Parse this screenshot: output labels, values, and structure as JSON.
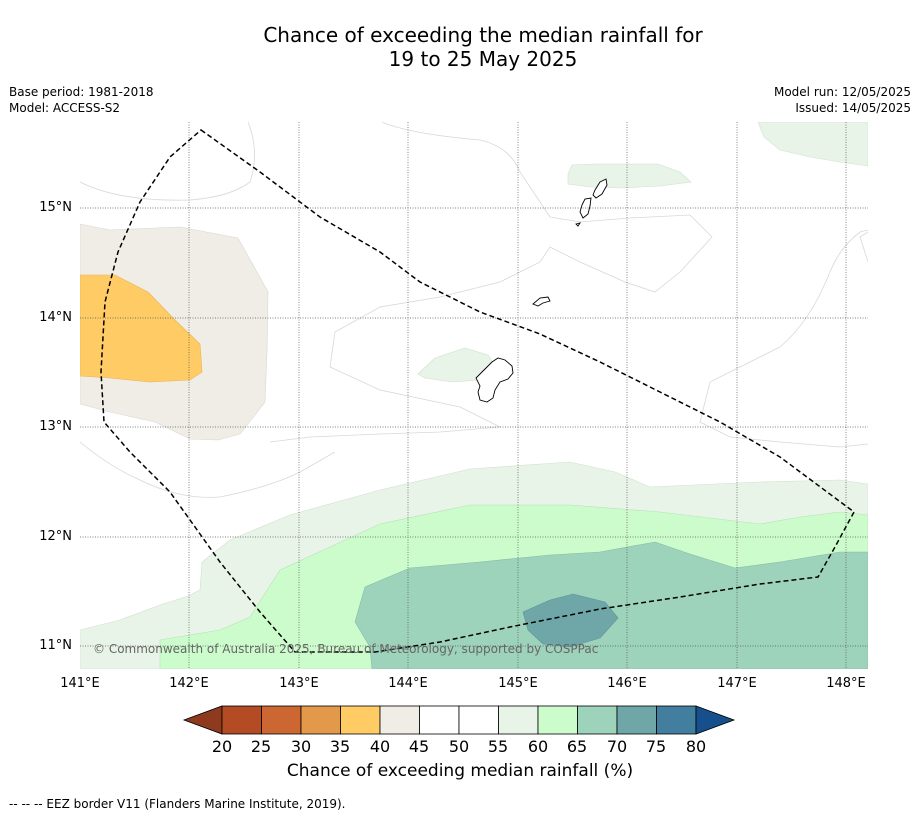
{
  "title_line1": "Chance of exceeding the median rainfall for",
  "title_line2": "19 to 25 May 2025",
  "meta_left": [
    "Base period: 1981-2018",
    "Model: ACCESS-S2"
  ],
  "meta_right": [
    "Model run: 12/05/2025",
    "Issued: 14/05/2025"
  ],
  "map": {
    "lon_range": [
      141,
      148.2
    ],
    "lat_range": [
      10.8,
      15.8
    ],
    "lat_ticks": [
      15,
      14,
      13,
      12,
      11
    ],
    "lat_labels": [
      "15°N",
      "14°N",
      "13°N",
      "12°N",
      "11°N"
    ],
    "lon_ticks": [
      141,
      142,
      143,
      144,
      145,
      146,
      147,
      148
    ],
    "lon_labels": [
      "141°E",
      "142°E",
      "143°E",
      "144°E",
      "145°E",
      "146°E",
      "147°E",
      "148°E"
    ],
    "grid": true,
    "copyright": "© Commonwealth of Australia 2025, Bureau of Meteorology, supported by COSPPac"
  },
  "colorbar": {
    "ticks": [
      "20",
      "25",
      "30",
      "35",
      "40",
      "45",
      "50",
      "55",
      "60",
      "65",
      "70",
      "75",
      "80"
    ],
    "colors": [
      "#8e3a1e",
      "#b54b24",
      "#cc6633",
      "#e29a4a",
      "#fecb65",
      "#f0ece6",
      "#ffffff",
      "#ffffff",
      "#e9f4e8",
      "#ccfccc",
      "#9dd2bb",
      "#6fa7a9",
      "#427f9e",
      "#15508c"
    ],
    "label": "Chance of exceeding median rainfall (%)"
  },
  "footer": "--  --  -- EEZ border V11 (Flanders Marine Institute, 2019)."
}
